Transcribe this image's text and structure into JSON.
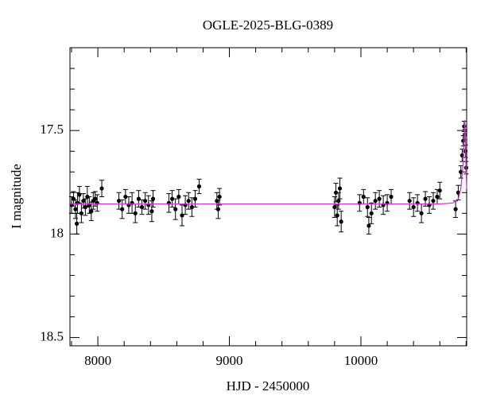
{
  "chart_data": {
    "type": "scatter",
    "title": "OGLE-2025-BLG-0389",
    "x_label": "HJD - 2450000",
    "y_label": "I magnitude",
    "xlim": [
      7788,
      10804
    ],
    "ylim": [
      17.1,
      18.54
    ],
    "y_inverted": true,
    "xticks": [
      8000,
      9000,
      10000
    ],
    "xticks_minor": [
      7800,
      8200,
      8400,
      8600,
      8800,
      9200,
      9400,
      9600,
      9800,
      10200,
      10400,
      10600,
      10800
    ],
    "yticks": [
      17.5,
      18,
      18.5
    ],
    "yticks_minor": [
      17.2,
      17.3,
      17.4,
      17.6,
      17.7,
      17.8,
      17.9,
      18.1,
      18.2,
      18.3,
      18.4
    ],
    "color": "#000000",
    "model_color": "#cc33cc",
    "x": [
      7800,
      7815,
      7830,
      7845,
      7860,
      7875,
      7890,
      7905,
      7920,
      7935,
      7950,
      7965,
      7980,
      7995,
      8030,
      7840,
      8160,
      8185,
      8210,
      8235,
      8260,
      8285,
      8310,
      8335,
      8360,
      8385,
      8410,
      8420,
      8540,
      8565,
      8590,
      8615,
      8640,
      8665,
      8690,
      8715,
      8740,
      8770,
      8905,
      8915,
      8925,
      9800,
      9810,
      9820,
      9830,
      9840,
      9850,
      9990,
      10020,
      10050,
      10080,
      10110,
      10140,
      10170,
      10200,
      10230,
      10060,
      10370,
      10400,
      10430,
      10460,
      10490,
      10520,
      10550,
      10580,
      10600,
      10720,
      10740,
      10760,
      10770,
      10778,
      10785,
      10790,
      10795,
      10800
    ],
    "values": [
      17.86,
      17.83,
      17.88,
      17.85,
      17.81,
      17.9,
      17.84,
      17.87,
      17.82,
      17.86,
      17.89,
      17.84,
      17.83,
      17.85,
      17.78,
      17.95,
      17.84,
      17.88,
      17.82,
      17.86,
      17.85,
      17.9,
      17.83,
      17.87,
      17.84,
      17.86,
      17.89,
      17.83,
      17.85,
      17.83,
      17.88,
      17.82,
      17.91,
      17.86,
      17.84,
      17.87,
      17.83,
      17.77,
      17.84,
      17.88,
      17.82,
      17.87,
      17.8,
      17.91,
      17.84,
      17.78,
      17.94,
      17.85,
      17.82,
      17.87,
      17.9,
      17.84,
      17.83,
      17.86,
      17.85,
      17.82,
      17.96,
      17.84,
      17.87,
      17.85,
      17.9,
      17.83,
      17.86,
      17.84,
      17.82,
      17.79,
      17.88,
      17.8,
      17.7,
      17.62,
      17.55,
      17.48,
      17.52,
      17.6,
      17.68
    ],
    "errors": [
      0.04,
      0.035,
      0.045,
      0.05,
      0.04,
      0.045,
      0.035,
      0.04,
      0.05,
      0.04,
      0.045,
      0.04,
      0.035,
      0.04,
      0.04,
      0.05,
      0.04,
      0.045,
      0.035,
      0.04,
      0.05,
      0.045,
      0.04,
      0.035,
      0.04,
      0.045,
      0.05,
      0.04,
      0.045,
      0.04,
      0.05,
      0.035,
      0.05,
      0.045,
      0.04,
      0.045,
      0.04,
      0.035,
      0.04,
      0.045,
      0.04,
      0.05,
      0.045,
      0.05,
      0.04,
      0.05,
      0.05,
      0.04,
      0.035,
      0.045,
      0.05,
      0.04,
      0.04,
      0.045,
      0.04,
      0.035,
      0.04,
      0.04,
      0.045,
      0.04,
      0.045,
      0.035,
      0.04,
      0.04,
      0.035,
      0.04,
      0.04,
      0.035,
      0.03,
      0.03,
      0.025,
      0.025,
      0.025,
      0.03,
      0.03
    ],
    "model_x": [
      7788,
      10600,
      10700,
      10740,
      10760,
      10775,
      10785,
      10790,
      10795,
      10800,
      10804
    ],
    "model_y": [
      17.855,
      17.855,
      17.85,
      17.83,
      17.78,
      17.68,
      17.55,
      17.45,
      17.55,
      17.7,
      17.78
    ]
  }
}
